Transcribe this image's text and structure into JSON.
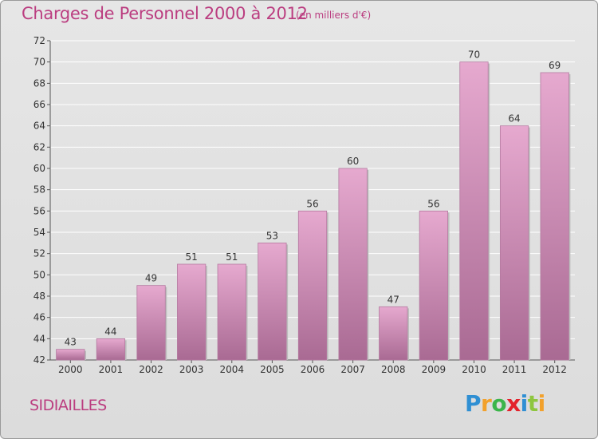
{
  "header": {
    "title": "Charges de Personnel 2000 à 2012",
    "subtitle": "(en milliers d'€)"
  },
  "footer": {
    "commune": "SIDIAILLES",
    "brand": "Proxiti"
  },
  "colors": {
    "accent": "#bb3d80",
    "bar_top": "#e6a9cf",
    "bar_bottom": "#a96a93",
    "background": "#dfdfdf",
    "grid": "#ffffff",
    "brand_letters": [
      "#2f8fd3",
      "#f2a12c",
      "#3bb54a",
      "#e3232c",
      "#2f8fd3",
      "#8ec63f",
      "#f2a12c"
    ]
  },
  "chart_data": {
    "type": "bar",
    "title": "Charges de Personnel 2000 à 2012",
    "subtitle": "(en milliers d'€)",
    "categories": [
      "2000",
      "2001",
      "2002",
      "2003",
      "2004",
      "2005",
      "2006",
      "2007",
      "2008",
      "2009",
      "2010",
      "2011",
      "2012"
    ],
    "values": [
      43,
      44,
      49,
      51,
      51,
      53,
      56,
      60,
      47,
      56,
      70,
      64,
      69
    ],
    "ylim": [
      42,
      72
    ],
    "yticks": [
      42,
      44,
      46,
      48,
      50,
      52,
      54,
      56,
      58,
      60,
      62,
      64,
      66,
      68,
      70,
      72
    ],
    "grid": true,
    "legend": "none",
    "data_labels": true
  }
}
